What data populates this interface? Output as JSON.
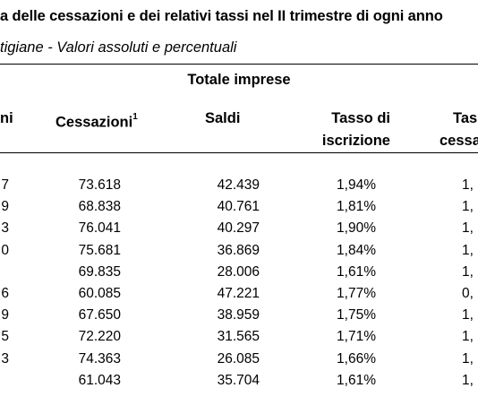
{
  "title": "a delle cessazioni e dei relativi tassi nel II trimestre di ogni anno",
  "subtitle": "tigiane - Valori assoluti e percentuali",
  "group_header": "Totale imprese",
  "columns": {
    "c0": "ni",
    "c1": "Cessazioni",
    "c1_sup": "1",
    "c2": "Saldi",
    "c3_line1": "Tasso di",
    "c3_line2": "iscrizione",
    "c4_line1": "Tas",
    "c4_line2": "cessa"
  },
  "rows": [
    {
      "c0": "7",
      "c1": "73.618",
      "c2": "42.439",
      "c3": "1,94%",
      "c4": "1,"
    },
    {
      "c0": "9",
      "c1": "68.838",
      "c2": "40.761",
      "c3": "1,81%",
      "c4": "1,"
    },
    {
      "c0": "3",
      "c1": "76.041",
      "c2": "40.297",
      "c3": "1,90%",
      "c4": "1,"
    },
    {
      "c0": "0",
      "c1": "75.681",
      "c2": "36.869",
      "c3": "1,84%",
      "c4": "1,"
    },
    {
      "c0": "",
      "c1": "69.835",
      "c2": "28.006",
      "c3": "1,61%",
      "c4": "1,"
    },
    {
      "c0": "6",
      "c1": "60.085",
      "c2": "47.221",
      "c3": "1,77%",
      "c4": "0,"
    },
    {
      "c0": "9",
      "c1": "67.650",
      "c2": "38.959",
      "c3": "1,75%",
      "c4": "1,"
    },
    {
      "c0": "5",
      "c1": "72.220",
      "c2": "31.565",
      "c3": "1,71%",
      "c4": "1,"
    },
    {
      "c0": "3",
      "c1": "74.363",
      "c2": "26.085",
      "c3": "1,66%",
      "c4": "1,"
    },
    {
      "c0": "",
      "c1": "61.043",
      "c2": "35.704",
      "c3": "1,61%",
      "c4": "1,"
    }
  ]
}
